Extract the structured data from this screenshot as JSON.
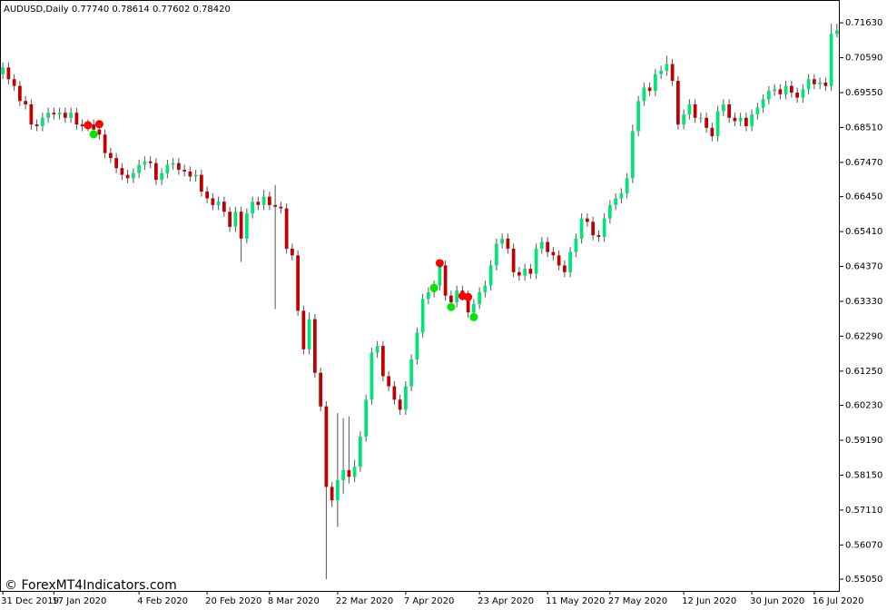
{
  "chart_data": {
    "type": "candlestick",
    "title": "AUDUSD,Daily  0.77740 0.78614 0.77602 0.78420",
    "watermark": "© ForexMT4Indicators.com",
    "bull_color": "#00e676",
    "bear_color": "#c00000",
    "wick_color": "#555555",
    "grid": false,
    "categories": [
      "31 Dec 2019",
      null,
      null,
      null,
      null,
      null,
      null,
      null,
      null,
      "17 Jan 2020",
      null,
      null,
      null,
      null,
      null,
      null,
      null,
      null,
      null,
      null,
      null,
      null,
      null,
      null,
      "4 Feb 2020",
      null,
      null,
      null,
      null,
      null,
      null,
      null,
      null,
      null,
      null,
      null,
      "20 Feb 2020",
      null,
      null,
      null,
      null,
      null,
      null,
      null,
      null,
      null,
      null,
      "8 Mar 2020",
      null,
      null,
      null,
      null,
      null,
      null,
      null,
      null,
      null,
      null,
      null,
      "22 Mar 2020",
      null,
      null,
      null,
      null,
      null,
      null,
      null,
      null,
      null,
      null,
      null,
      "7 Apr 2020",
      null,
      null,
      null,
      null,
      null,
      null,
      null,
      null,
      null,
      null,
      null,
      null,
      "23 Apr 2020",
      null,
      null,
      null,
      null,
      null,
      null,
      null,
      null,
      null,
      null,
      null,
      "11 May 2020",
      null,
      null,
      null,
      null,
      null,
      null,
      null,
      null,
      null,
      null,
      "27 May 2020",
      null,
      null,
      null,
      null,
      null,
      null,
      null,
      null,
      null,
      null,
      null,
      null,
      "12 Jun 2020",
      null,
      null,
      null,
      null,
      null,
      null,
      null,
      null,
      null,
      null,
      null,
      "30 Jun 2020",
      null,
      null,
      null,
      null,
      null,
      null,
      null,
      null,
      null,
      null,
      "16 Jul 2020",
      null,
      null,
      null,
      null
    ],
    "open": [
      0.701,
      0.703,
      0.6995,
      0.6975,
      0.693,
      0.692,
      0.686,
      0.6855,
      0.688,
      0.6895,
      0.689,
      0.6895,
      0.688,
      0.6895,
      0.686,
      0.6855,
      0.686,
      0.6845,
      0.683,
      0.6775,
      0.676,
      0.673,
      0.671,
      0.67,
      0.6715,
      0.674,
      0.675,
      0.6745,
      0.6695,
      0.6715,
      0.674,
      0.6745,
      0.6725,
      0.672,
      0.6705,
      0.671,
      0.666,
      0.664,
      0.662,
      0.663,
      0.66,
      0.6555,
      0.66,
      0.652,
      0.6595,
      0.663,
      0.662,
      0.6645,
      0.662,
      0.6615,
      0.661,
      0.649,
      0.647,
      0.6305,
      0.619,
      0.628,
      0.612,
      0.602,
      0.578,
      0.574,
      0.58,
      0.583,
      0.581,
      0.584,
      0.593,
      0.604,
      0.618,
      0.62,
      0.611,
      0.608,
      0.604,
      0.601,
      0.608,
      0.616,
      0.624,
      0.634,
      0.636,
      0.638,
      0.644,
      0.635,
      0.633,
      0.6365,
      0.635,
      0.63,
      0.6325,
      0.636,
      0.638,
      0.644,
      0.6505,
      0.652,
      0.649,
      0.642,
      0.641,
      0.643,
      0.6415,
      0.649,
      0.651,
      0.648,
      0.647,
      0.644,
      0.642,
      0.648,
      0.652,
      0.658,
      0.657,
      0.653,
      0.6525,
      0.658,
      0.662,
      0.664,
      0.6655,
      0.67,
      0.684,
      0.693,
      0.697,
      0.696,
      0.701,
      0.702,
      0.704,
      0.699,
      0.686,
      0.689,
      0.692,
      0.688,
      0.688,
      0.685,
      0.6825,
      0.69,
      0.692,
      0.688,
      0.687,
      0.688,
      0.6855,
      0.689,
      0.691,
      0.6935,
      0.696,
      0.6965,
      0.695,
      0.6975,
      0.6955,
      0.694,
      0.6965,
      0.6995,
      0.698,
      0.6985,
      0.6975,
      0.713
    ],
    "high": [
      0.7045,
      0.7045,
      0.701,
      0.699,
      0.6945,
      0.6935,
      0.6875,
      0.6895,
      0.691,
      0.691,
      0.691,
      0.691,
      0.691,
      0.691,
      0.6875,
      0.6875,
      0.6875,
      0.686,
      0.6845,
      0.679,
      0.6775,
      0.6745,
      0.6725,
      0.673,
      0.6755,
      0.6765,
      0.6765,
      0.676,
      0.673,
      0.6755,
      0.676,
      0.676,
      0.674,
      0.6735,
      0.6725,
      0.6725,
      0.6675,
      0.6655,
      0.6645,
      0.6645,
      0.6615,
      0.6615,
      0.6615,
      0.661,
      0.6645,
      0.6645,
      0.6665,
      0.666,
      0.668,
      0.663,
      0.6625,
      0.6505,
      0.6485,
      0.632,
      0.63,
      0.6295,
      0.6135,
      0.6035,
      0.5795,
      0.6,
      0.5985,
      0.599,
      0.586,
      0.5945,
      0.6055,
      0.6195,
      0.6215,
      0.6215,
      0.6125,
      0.6095,
      0.6055,
      0.6095,
      0.6175,
      0.6255,
      0.6355,
      0.6375,
      0.6395,
      0.6455,
      0.6455,
      0.6365,
      0.638,
      0.638,
      0.6365,
      0.634,
      0.6375,
      0.6395,
      0.6455,
      0.652,
      0.6535,
      0.6535,
      0.6505,
      0.6435,
      0.6445,
      0.6445,
      0.6505,
      0.6525,
      0.6525,
      0.6495,
      0.6485,
      0.6455,
      0.6495,
      0.6535,
      0.6595,
      0.6595,
      0.6585,
      0.6545,
      0.6595,
      0.6635,
      0.6655,
      0.667,
      0.6715,
      0.686,
      0.6945,
      0.6985,
      0.6985,
      0.7025,
      0.7035,
      0.7065,
      0.7055,
      0.7005,
      0.6905,
      0.6935,
      0.6935,
      0.6895,
      0.6895,
      0.6865,
      0.6915,
      0.6935,
      0.6935,
      0.6895,
      0.6895,
      0.6895,
      0.6905,
      0.6925,
      0.695,
      0.6975,
      0.698,
      0.698,
      0.699,
      0.699,
      0.697,
      0.698,
      0.701,
      0.701,
      0.7,
      0.7,
      0.716,
      0.716
    ],
    "low": [
      0.6995,
      0.698,
      0.696,
      0.6915,
      0.6905,
      0.6845,
      0.684,
      0.684,
      0.6865,
      0.6875,
      0.6875,
      0.6865,
      0.6865,
      0.6845,
      0.684,
      0.684,
      0.683,
      0.6815,
      0.676,
      0.6745,
      0.6715,
      0.6695,
      0.6685,
      0.6685,
      0.67,
      0.6725,
      0.673,
      0.668,
      0.668,
      0.67,
      0.6725,
      0.671,
      0.6705,
      0.669,
      0.669,
      0.6645,
      0.6625,
      0.6605,
      0.6605,
      0.6585,
      0.654,
      0.654,
      0.645,
      0.6505,
      0.658,
      0.6605,
      0.6605,
      0.6605,
      0.631,
      0.6595,
      0.6475,
      0.6455,
      0.629,
      0.6175,
      0.6175,
      0.6105,
      0.6005,
      0.5505,
      0.572,
      0.566,
      0.576,
      0.579,
      0.5795,
      0.5825,
      0.5915,
      0.6025,
      0.6165,
      0.6095,
      0.6065,
      0.6025,
      0.5995,
      0.5995,
      0.6065,
      0.6145,
      0.6225,
      0.6325,
      0.6345,
      0.6365,
      0.6335,
      0.6315,
      0.6315,
      0.6335,
      0.6285,
      0.6285,
      0.631,
      0.6345,
      0.6365,
      0.6425,
      0.649,
      0.6475,
      0.6405,
      0.6395,
      0.6395,
      0.64,
      0.64,
      0.6475,
      0.6465,
      0.6455,
      0.6425,
      0.6405,
      0.6405,
      0.6465,
      0.6505,
      0.6555,
      0.6515,
      0.651,
      0.651,
      0.6565,
      0.6605,
      0.6625,
      0.664,
      0.6685,
      0.6825,
      0.6915,
      0.6945,
      0.6945,
      0.6995,
      0.7005,
      0.6975,
      0.6845,
      0.6845,
      0.6875,
      0.6865,
      0.6865,
      0.6835,
      0.681,
      0.681,
      0.6885,
      0.6865,
      0.6855,
      0.6855,
      0.684,
      0.684,
      0.6875,
      0.6895,
      0.692,
      0.6945,
      0.6935,
      0.6935,
      0.694,
      0.6925,
      0.6925,
      0.695,
      0.6965,
      0.6965,
      0.696,
      0.696,
      0.712
    ],
    "close": [
      0.703,
      0.6995,
      0.6975,
      0.693,
      0.692,
      0.686,
      0.6855,
      0.688,
      0.6895,
      0.689,
      0.6895,
      0.688,
      0.6895,
      0.686,
      0.6855,
      0.686,
      0.6845,
      0.683,
      0.6775,
      0.676,
      0.673,
      0.671,
      0.67,
      0.6715,
      0.674,
      0.675,
      0.6745,
      0.6695,
      0.6715,
      0.674,
      0.6745,
      0.6725,
      0.672,
      0.6705,
      0.671,
      0.666,
      0.664,
      0.662,
      0.663,
      0.66,
      0.6555,
      0.66,
      0.652,
      0.6595,
      0.663,
      0.662,
      0.6645,
      0.662,
      0.6615,
      0.661,
      0.649,
      0.647,
      0.6305,
      0.619,
      0.628,
      0.612,
      0.602,
      0.578,
      0.574,
      0.58,
      0.583,
      0.581,
      0.584,
      0.593,
      0.604,
      0.618,
      0.62,
      0.611,
      0.608,
      0.604,
      0.601,
      0.608,
      0.616,
      0.624,
      0.634,
      0.636,
      0.638,
      0.644,
      0.635,
      0.633,
      0.6365,
      0.635,
      0.63,
      0.6325,
      0.636,
      0.638,
      0.644,
      0.6505,
      0.652,
      0.649,
      0.642,
      0.641,
      0.643,
      0.6415,
      0.649,
      0.651,
      0.648,
      0.647,
      0.644,
      0.642,
      0.648,
      0.652,
      0.658,
      0.657,
      0.653,
      0.6525,
      0.658,
      0.662,
      0.664,
      0.6655,
      0.67,
      0.684,
      0.693,
      0.697,
      0.696,
      0.701,
      0.702,
      0.704,
      0.699,
      0.686,
      0.689,
      0.692,
      0.688,
      0.688,
      0.685,
      0.6825,
      0.69,
      0.692,
      0.688,
      0.687,
      0.688,
      0.6855,
      0.689,
      0.691,
      0.6935,
      0.696,
      0.6965,
      0.695,
      0.6975,
      0.6955,
      0.694,
      0.6965,
      0.6995,
      0.698,
      0.6985,
      0.6975,
      0.713,
      0.714
    ],
    "dots": [
      {
        "color": "#ff0000",
        "x": [
          15,
          17,
          77,
          81,
          82
        ],
        "values": [
          0.6858,
          0.6861,
          0.6447,
          0.6349,
          0.6346
        ]
      },
      {
        "color": "#00e600",
        "x": [
          16,
          76,
          79,
          83
        ],
        "values": [
          0.6831,
          0.6373,
          0.6316,
          0.6286
        ]
      }
    ],
    "ylim": [
      0.547,
      0.7231
    ],
    "yticks": [
      {
        "value": 0.7163,
        "label": "0.71630"
      },
      {
        "value": 0.7059,
        "label": "0.70590"
      },
      {
        "value": 0.6955,
        "label": "0.69550"
      },
      {
        "value": 0.6851,
        "label": "0.68510"
      },
      {
        "value": 0.6747,
        "label": "0.67470"
      },
      {
        "value": 0.6645,
        "label": "0.66450"
      },
      {
        "value": 0.6541,
        "label": "0.65410"
      },
      {
        "value": 0.6437,
        "label": "0.64370"
      },
      {
        "value": 0.6333,
        "label": "0.63330"
      },
      {
        "value": 0.6229,
        "label": "0.62290"
      },
      {
        "value": 0.6125,
        "label": "0.61250"
      },
      {
        "value": 0.6023,
        "label": "0.60230"
      },
      {
        "value": 0.5919,
        "label": "0.59190"
      },
      {
        "value": 0.5815,
        "label": "0.58150"
      },
      {
        "value": 0.5711,
        "label": "0.57110"
      },
      {
        "value": 0.5607,
        "label": "0.56070"
      },
      {
        "value": 0.5505,
        "label": "0.55050"
      }
    ]
  }
}
